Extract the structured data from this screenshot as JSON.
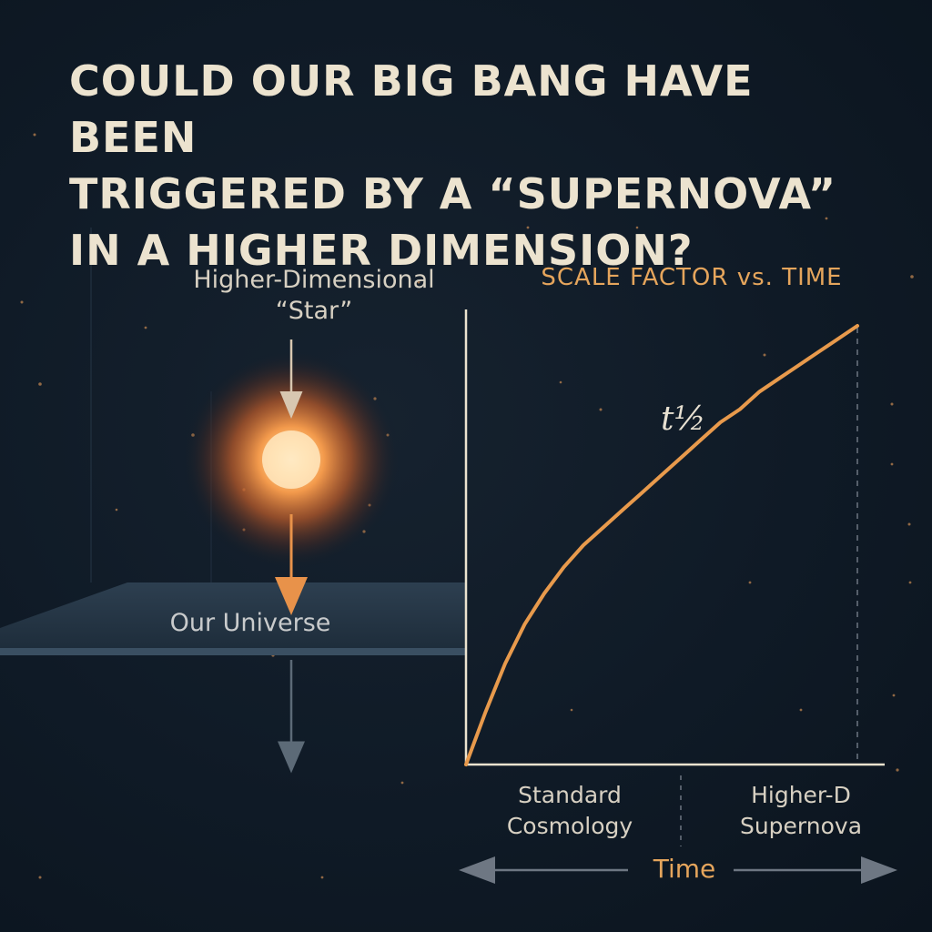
{
  "title_lines": [
    "COULD OUR BIG BANG HAVE BEEN",
    "TRIGGERED BY A “SUPERNOVA”",
    "IN A HIGHER DIMENSION?"
  ],
  "diagram": {
    "star_label": [
      "Higher-Dimensional",
      "“Star”"
    ],
    "universe_label": "Our Universe",
    "colors": {
      "star": "#f08a3c",
      "arrow": "#e8924a",
      "brane": "#33475a",
      "background": "#0f1a26"
    }
  },
  "chart_data": {
    "type": "line",
    "title": "SCALE FACTOR vs. TIME",
    "xlabel": "Time",
    "ylabel": "",
    "x_regions": [
      {
        "label_lines": [
          "Standard",
          "Cosmology"
        ]
      },
      {
        "label_lines": [
          "Higher-D",
          "Supernova"
        ]
      }
    ],
    "curve_label": "t½",
    "series": [
      {
        "color": "#e89a4c",
        "x": [
          0,
          0.05,
          0.1,
          0.15,
          0.2,
          0.25,
          0.3,
          0.35,
          0.4,
          0.45,
          0.5,
          0.55,
          0.6,
          0.65,
          0.7,
          0.75,
          0.8,
          0.85,
          0.9,
          0.95,
          1.0
        ],
        "y": [
          0,
          0.12,
          0.23,
          0.32,
          0.39,
          0.45,
          0.5,
          0.54,
          0.58,
          0.62,
          0.66,
          0.7,
          0.74,
          0.78,
          0.81,
          0.85,
          0.88,
          0.91,
          0.94,
          0.97,
          1.0
        ]
      }
    ],
    "xlim": [
      0,
      1
    ],
    "ylim": [
      0,
      1
    ],
    "grid": false,
    "axis_arrows": "both"
  }
}
